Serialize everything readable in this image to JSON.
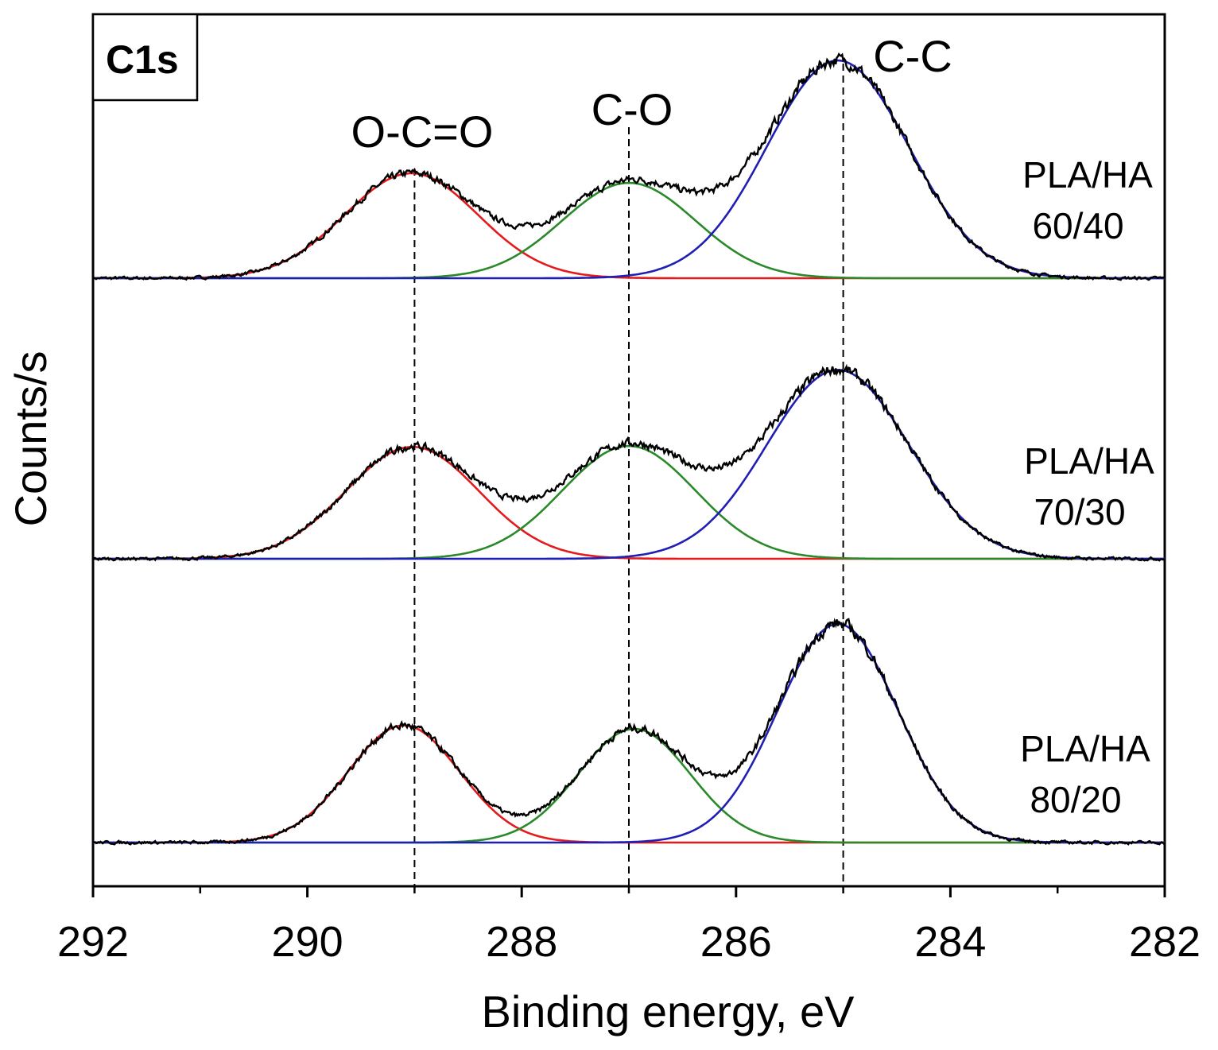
{
  "chart_data": {
    "type": "line",
    "panel_label": "C1s",
    "xlabel": "Binding energy, eV",
    "ylabel": "Counts/s",
    "xlim": [
      292,
      282
    ],
    "x_reversed": true,
    "x_ticks": [
      292,
      290,
      288,
      286,
      284,
      282
    ],
    "x_minor_ticks": [
      291,
      289,
      287,
      285,
      283
    ],
    "y_ticks_shown": false,
    "peaks": [
      {
        "label": "O-C=O",
        "position": 289.0,
        "color": "#e41a1c"
      },
      {
        "label": "C-O",
        "position": 287.0,
        "color": "#2a8a2a"
      },
      {
        "label": "C-C",
        "position": 285.0,
        "color": "#1f1fb4"
      }
    ],
    "data_color": "#000000",
    "sample_label_prefix": "PLA/HA",
    "samples": [
      {
        "label": "60/40",
        "baseline": 0.0,
        "components": [
          {
            "peak": "O-C=O",
            "center": 289.03,
            "height": 1.2,
            "sigma": 0.62
          },
          {
            "peak": "C-O",
            "center": 287.0,
            "height": 1.09,
            "sigma": 0.62
          },
          {
            "peak": "C-C",
            "center": 285.05,
            "height": 2.49,
            "sigma": 0.66
          }
        ]
      },
      {
        "label": "70/30",
        "baseline": 0.0,
        "components": [
          {
            "peak": "O-C=O",
            "center": 289.02,
            "height": 1.28,
            "sigma": 0.62
          },
          {
            "peak": "C-O",
            "center": 287.0,
            "height": 1.29,
            "sigma": 0.62
          },
          {
            "peak": "C-C",
            "center": 285.05,
            "height": 2.16,
            "sigma": 0.66
          }
        ]
      },
      {
        "label": "80/20",
        "baseline": 0.0,
        "components": [
          {
            "peak": "O-C=O",
            "center": 289.1,
            "height": 1.34,
            "sigma": 0.52
          },
          {
            "peak": "C-O",
            "center": 286.95,
            "height": 1.3,
            "sigma": 0.52
          },
          {
            "peak": "C-C",
            "center": 285.05,
            "height": 2.5,
            "sigma": 0.56
          }
        ]
      }
    ]
  }
}
